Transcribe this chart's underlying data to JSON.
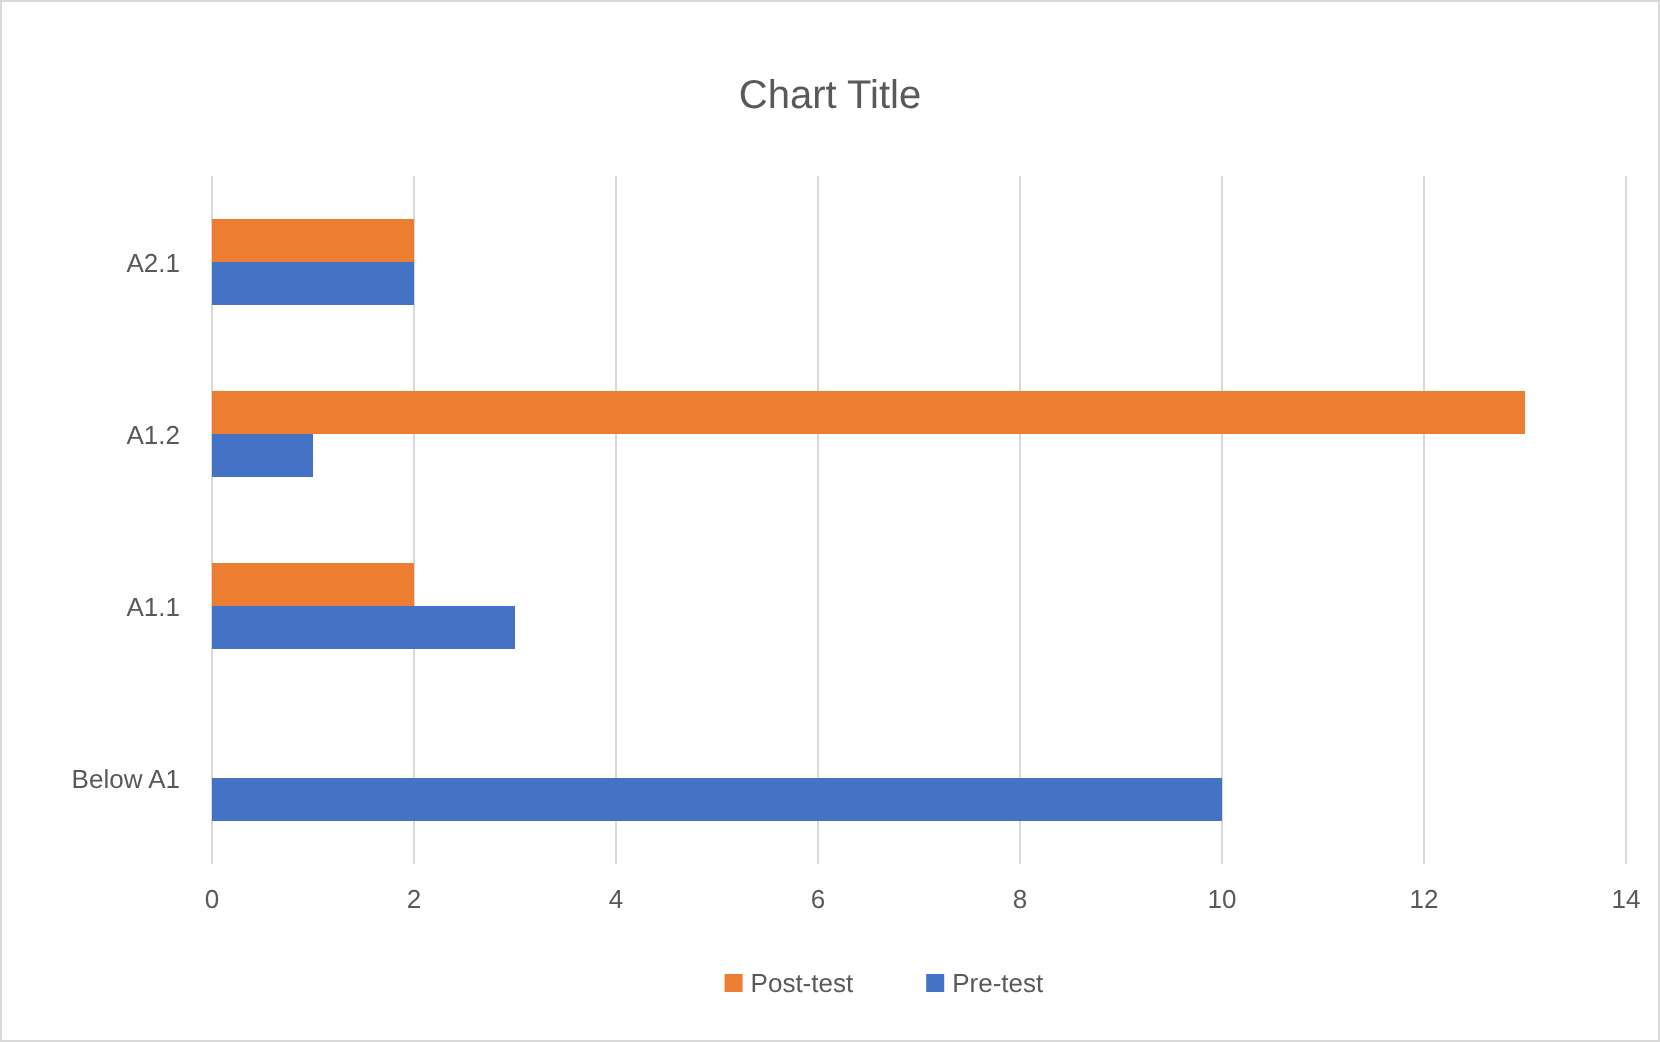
{
  "chart_data": {
    "type": "bar",
    "orientation": "horizontal",
    "title": "Chart Title",
    "categories": [
      "A2.1",
      "A1.2",
      "A1.1",
      "Below A1"
    ],
    "series": [
      {
        "name": "Post-test",
        "color": "#ed7d31",
        "values": [
          2,
          13,
          2,
          0
        ]
      },
      {
        "name": "Pre-test",
        "color": "#4472c4",
        "values": [
          2,
          1,
          3,
          10
        ]
      }
    ],
    "xlim": [
      0,
      14
    ],
    "xticks": [
      0,
      2,
      4,
      6,
      8,
      10,
      12,
      14
    ],
    "grid": "x",
    "legend": "bottom"
  }
}
